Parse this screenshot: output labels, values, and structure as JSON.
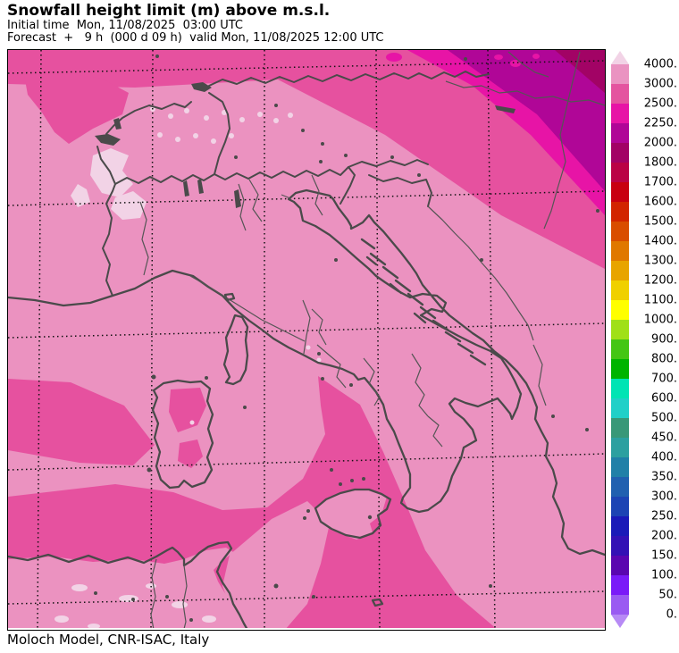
{
  "header": {
    "title": "Snowfall height limit (m) above m.s.l.",
    "line_initial": "Initial time  Mon, 11/08/2025  03:00 UTC",
    "line_forecast": "Forecast  +   9 h  (000 d 09 h)  valid Mon, 11/08/2025 12:00 UTC"
  },
  "footer": {
    "credit": "Moloch Model, CNR-ISAC, Italy"
  },
  "legend": {
    "unit": "m",
    "ticks": [
      "4000.",
      "3000.",
      "2500.",
      "2250.",
      "2000.",
      "1800.",
      "1700.",
      "1600.",
      "1500.",
      "1400.",
      "1300.",
      "1200.",
      "1100.",
      "1000.",
      "900.",
      "800.",
      "700.",
      "600.",
      "500.",
      "450.",
      "400.",
      "350.",
      "300.",
      "250.",
      "200.",
      "150.",
      "100.",
      "50.",
      "0."
    ],
    "box_colors_top_to_bottom": [
      "#ea93c1",
      "#e4549f",
      "#e714a6",
      "#b00697",
      "#a20365",
      "#ba0345",
      "#c80010",
      "#d22500",
      "#d94d00",
      "#e07800",
      "#e8a400",
      "#f0d000",
      "#ffff00",
      "#a0e018",
      "#44c614",
      "#00b400",
      "#00e4b4",
      "#20d0c8",
      "#389878",
      "#2ca0a0",
      "#2080a8",
      "#2060b0",
      "#1c44b4",
      "#1a1ab8",
      "#3311b5",
      "#5a06b0",
      "#7a1af8",
      "#9a5af2"
    ],
    "arrow_above_color": "#f2d3e6",
    "arrow_below_color": "#b78af5"
  },
  "map": {
    "depicted_bands_m": [
      {
        "range": "above 4000",
        "color": "#f2d3e6",
        "where": "NW Alps patches, Atlas mountains, small Apennine/Sardinia spots"
      },
      {
        "range": "3000-4000",
        "color": "#eb92c0",
        "where": "dominant background over Italy and seas"
      },
      {
        "range": "2500-3000",
        "color": "#e6519f",
        "where": "northern band, west of Sardinia, North-African coast, Ionian swath east of Sicily"
      },
      {
        "range": "2250-2500",
        "color": "#e714a6",
        "where": "north-east corner band"
      },
      {
        "range": "2000-2250",
        "color": "#b00697",
        "where": "north-east corner band"
      },
      {
        "range": "1800-2000",
        "color": "#a20365",
        "where": "extreme north-east corner wedge"
      }
    ],
    "colors": {
      "coastline": "#4a4a4a",
      "grid": "#111111",
      "frame": "#000000"
    }
  }
}
